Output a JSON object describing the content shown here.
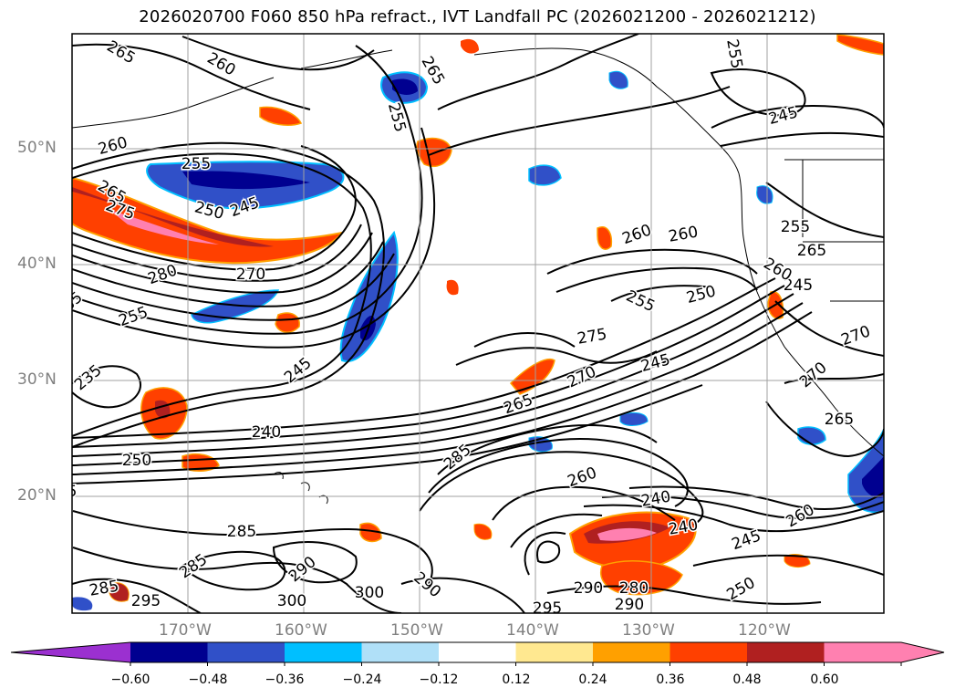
{
  "title": "2026020700 F060 850 hPa refract., IVT Landfall PC (2026021200 - 2026021212)",
  "lat_labels": [
    "50°N",
    "40°N",
    "30°N",
    "20°N"
  ],
  "lon_labels": [
    "170°W",
    "160°W",
    "150°W",
    "140°W",
    "130°W",
    "120°W"
  ],
  "colorbar": {
    "ticks": [
      "−0.60",
      "−0.48",
      "−0.36",
      "−0.24",
      "−0.12",
      "0.12",
      "0.24",
      "0.36",
      "0.48",
      "0.60"
    ],
    "colors": [
      "#9b30d0",
      "#000090",
      "#3050c8",
      "#00bfff",
      "#b0e0f8",
      "#ffffff",
      "#ffe890",
      "#ffa000",
      "#ff4000",
      "#b02020",
      "#ff80b0",
      "#ff80b0"
    ]
  },
  "contour_labels": [
    "265",
    "260",
    "265",
    "255",
    "260",
    "255",
    "250",
    "245",
    "265",
    "275",
    "280",
    "270",
    "255",
    "285",
    "235",
    "250",
    "240",
    "245",
    "260",
    "265",
    "275",
    "270",
    "260",
    "255",
    "250",
    "245",
    "255",
    "265",
    "270",
    "245",
    "255",
    "260",
    "240",
    "240",
    "245",
    "260",
    "250",
    "285",
    "285",
    "290",
    "295",
    "300",
    "300",
    "290",
    "290",
    "280",
    "290",
    "295",
    "285",
    "285",
    "5",
    "245",
    "260",
    "265",
    "270"
  ]
}
